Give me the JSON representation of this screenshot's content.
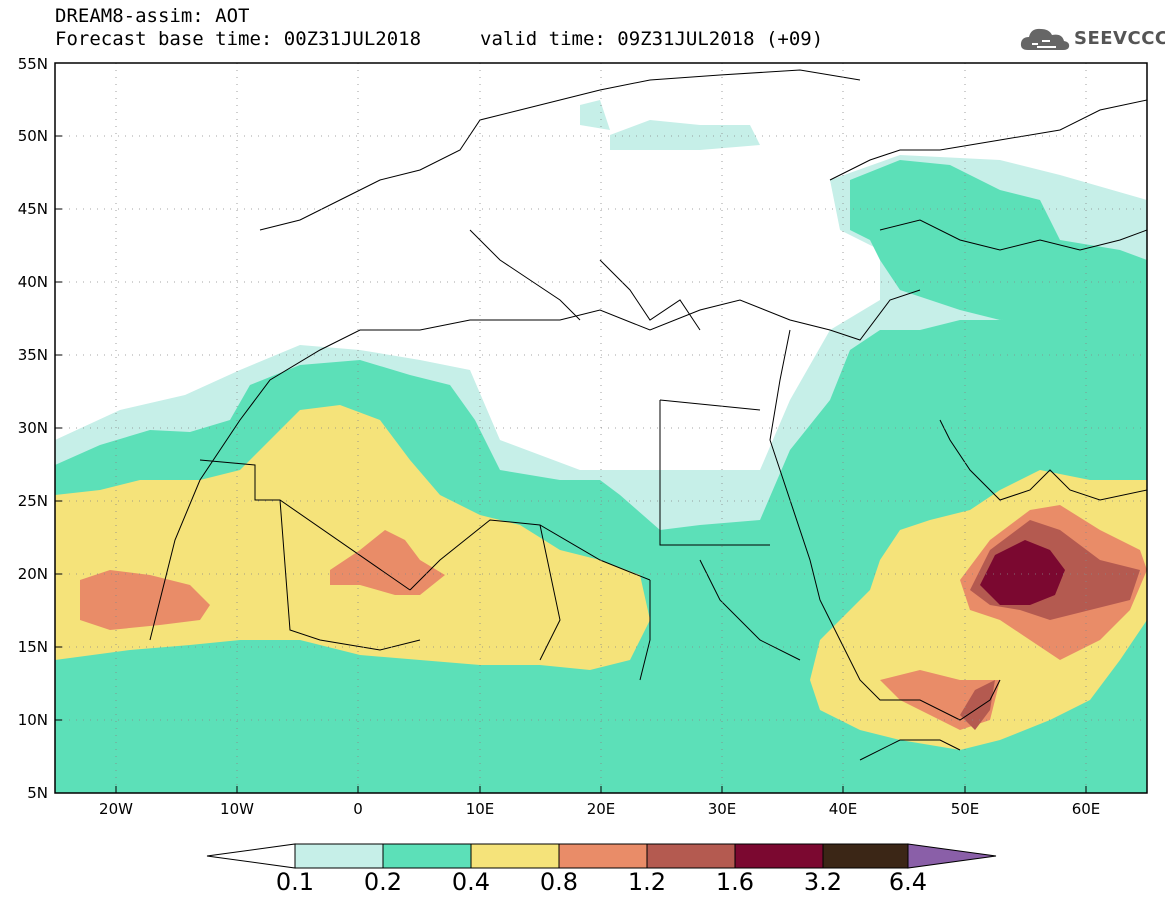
{
  "header": {
    "line1": "DREAM8-assim: AOT",
    "line2": "Forecast base time: 00Z31JUL2018",
    "valid_time": "valid time: 09Z31JUL2018 (+09)"
  },
  "logo": {
    "text": "SEEVCCC",
    "icon": "cloud-icon"
  },
  "map": {
    "lat_labels": [
      "55N",
      "50N",
      "45N",
      "40N",
      "35N",
      "30N",
      "25N",
      "20N",
      "15N",
      "10N",
      "5N"
    ],
    "lon_labels": [
      "20W",
      "10W",
      "0",
      "10E",
      "20E",
      "30E",
      "40E",
      "50E",
      "60E"
    ]
  },
  "colorbar": {
    "labels": [
      "0.1",
      "0.2",
      "0.4",
      "0.8",
      "1.2",
      "1.6",
      "3.2",
      "6.4"
    ],
    "colors": [
      "#ffffff",
      "#c6efe8",
      "#5ce0b8",
      "#f5e37a",
      "#e98c68",
      "#b45a50",
      "#7b0830",
      "#3b2616",
      "#8a5fa8"
    ]
  }
}
